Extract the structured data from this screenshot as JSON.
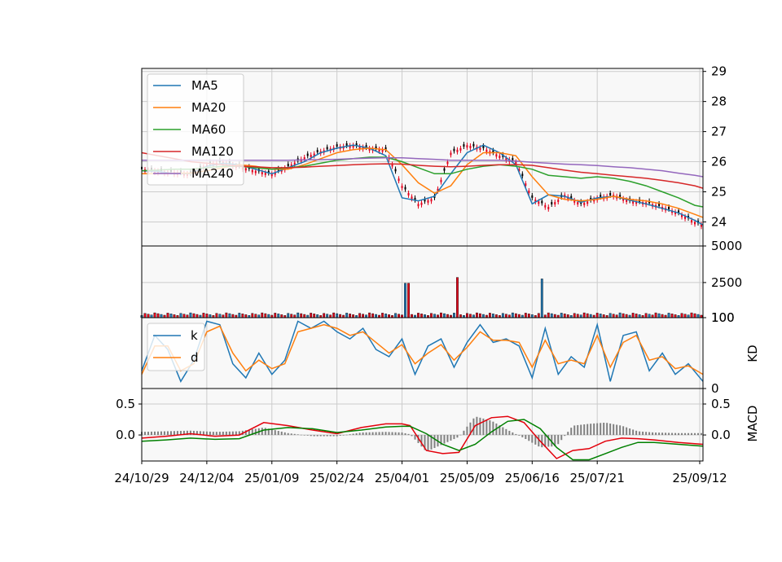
{
  "chart_data": [
    {
      "type": "line",
      "panel": "price",
      "description_of_marks": "candlesticks (red = up, black = down) with moving average lines",
      "x_tick_labels": [
        "24/10/29",
        "24/12/04",
        "25/01/09",
        "25/02/24",
        "25/04/01",
        "25/05/09",
        "25/06/16",
        "25/07/21",
        "25/09/12"
      ],
      "y_axis_side": "right",
      "ylim": [
        23.2,
        29.1
      ],
      "yticks": [
        24,
        25,
        26,
        27,
        28,
        29
      ],
      "grid": true,
      "legend_position": "top-left",
      "x": [
        0,
        10,
        20,
        30,
        40,
        50,
        60,
        70,
        80,
        90,
        100,
        110,
        120,
        130,
        140,
        150,
        160,
        170,
        180,
        190,
        200,
        210,
        220
      ],
      "close": [
        25.75,
        25.7,
        25.65,
        25.6,
        25.9,
        26.0,
        25.85,
        25.7,
        25.6,
        25.85,
        26.15,
        26.35,
        26.5,
        26.55,
        26.45,
        26.4,
        25.2,
        24.6,
        24.8,
        26.3,
        26.55,
        26.45,
        26.2
      ],
      "series": [
        {
          "name": "MA5",
          "color": "#1f77b4",
          "values": [
            25.7,
            25.68,
            25.6,
            25.6,
            25.85,
            25.95,
            25.9,
            25.75,
            25.6,
            25.8,
            26.0,
            26.3,
            26.45,
            26.55,
            26.45,
            26.2,
            24.8,
            24.7,
            24.85,
            25.6,
            26.3,
            26.55,
            26.3
          ]
        },
        {
          "name": "MA20",
          "color": "#ff7f0e",
          "values": [
            25.6,
            25.6,
            25.62,
            25.62,
            25.7,
            25.8,
            25.9,
            25.85,
            25.75,
            25.75,
            25.9,
            26.1,
            26.3,
            26.4,
            26.45,
            26.4,
            25.9,
            25.3,
            24.95,
            25.2,
            25.9,
            26.3,
            26.3
          ]
        },
        {
          "name": "MA60",
          "color": "#2ca02c",
          "values": [
            25.7,
            25.72,
            25.75,
            25.75,
            25.8,
            25.85,
            25.85,
            25.8,
            25.75,
            25.8,
            25.85,
            25.95,
            26.05,
            26.1,
            26.15,
            26.15,
            26.0,
            25.8,
            25.6,
            25.6,
            25.75,
            25.85,
            25.9
          ]
        },
        {
          "name": "MA120",
          "color": "#d62728",
          "values": [
            26.3,
            26.2,
            26.1,
            26.0,
            25.95,
            25.9,
            25.85,
            25.83,
            25.8,
            25.8,
            25.82,
            25.85,
            25.87,
            25.9,
            25.92,
            25.93,
            25.92,
            25.88,
            25.85,
            25.83,
            25.85,
            25.88,
            25.9
          ]
        },
        {
          "name": "MA240",
          "color": "#9467bd",
          "values": [
            26.05,
            26.05,
            26.05,
            26.05,
            26.05,
            26.05,
            26.05,
            26.05,
            26.05,
            26.05,
            26.06,
            26.07,
            26.08,
            26.1,
            26.12,
            26.13,
            26.13,
            26.1,
            26.08,
            26.05,
            26.05,
            26.05,
            26.05
          ]
        }
      ],
      "series_late": {
        "x": [
          230,
          240,
          250,
          260,
          270,
          280,
          290,
          300,
          310,
          320,
          330,
          340,
          345
        ],
        "close": [
          26.0,
          24.8,
          24.5,
          24.9,
          24.6,
          24.8,
          24.9,
          24.7,
          24.65,
          24.5,
          24.3,
          24.0,
          23.9
        ],
        "MA5": [
          25.9,
          24.6,
          24.9,
          24.85,
          24.65,
          24.8,
          24.85,
          24.72,
          24.6,
          24.45,
          24.3,
          24.05,
          23.9
        ],
        "MA20": [
          26.2,
          25.5,
          24.9,
          24.75,
          24.7,
          24.75,
          24.85,
          24.75,
          24.7,
          24.6,
          24.45,
          24.25,
          24.15
        ],
        "MA60": [
          25.85,
          25.75,
          25.55,
          25.5,
          25.45,
          25.5,
          25.45,
          25.35,
          25.2,
          25.0,
          24.8,
          24.55,
          24.5
        ],
        "MA120": [
          25.9,
          25.88,
          25.8,
          25.72,
          25.65,
          25.6,
          25.55,
          25.5,
          25.45,
          25.38,
          25.3,
          25.2,
          25.12
        ],
        "MA240": [
          26.02,
          25.98,
          25.95,
          25.92,
          25.9,
          25.87,
          25.83,
          25.8,
          25.75,
          25.7,
          25.62,
          25.55,
          25.5
        ]
      }
    },
    {
      "type": "bar",
      "panel": "volume",
      "y_axis_side": "right",
      "ylim": [
        100,
        5000
      ],
      "yticks": [
        100,
        2500,
        5000
      ],
      "grid": true,
      "spikes": [
        {
          "x": 163,
          "value": 2450
        },
        {
          "x": 194,
          "value": 2850
        },
        {
          "x": 246,
          "value": 2750
        }
      ],
      "baseline_value": 250
    },
    {
      "type": "line",
      "panel": "KD",
      "ylabel": "KD",
      "y_axis_side": "right",
      "ylim": [
        0,
        100
      ],
      "yticks": [
        0,
        100
      ],
      "grid": true,
      "legend_position": "top-left",
      "x": [
        0,
        8,
        16,
        24,
        32,
        40,
        48,
        56,
        64,
        72,
        80,
        88,
        96,
        104,
        112,
        120,
        128,
        136,
        144,
        152,
        160,
        168,
        176,
        184,
        192,
        200,
        208,
        216,
        224,
        232,
        240,
        248,
        256,
        264,
        272,
        280,
        288,
        296,
        304,
        312,
        320,
        328,
        336,
        345
      ],
      "series": [
        {
          "name": "k",
          "color": "#1f77b4",
          "values": [
            25,
            75,
            55,
            10,
            40,
            95,
            90,
            35,
            15,
            50,
            20,
            40,
            95,
            85,
            95,
            80,
            70,
            85,
            55,
            45,
            70,
            20,
            60,
            70,
            30,
            65,
            90,
            65,
            70,
            60,
            15,
            85,
            20,
            45,
            30,
            90,
            10,
            75,
            80,
            25,
            50,
            20,
            35,
            10
          ]
        },
        {
          "name": "d",
          "color": "#ff7f0e",
          "values": [
            20,
            60,
            60,
            25,
            35,
            80,
            88,
            50,
            25,
            40,
            28,
            35,
            80,
            85,
            90,
            85,
            75,
            80,
            65,
            50,
            62,
            35,
            50,
            62,
            40,
            58,
            80,
            68,
            68,
            65,
            30,
            68,
            35,
            40,
            35,
            75,
            30,
            65,
            75,
            40,
            45,
            28,
            32,
            20
          ]
        }
      ]
    },
    {
      "type": "line",
      "panel": "MACD",
      "ylabel": "MACD",
      "y_axis_side": "right",
      "ylim": [
        -0.42,
        0.75
      ],
      "yticks": [
        -0.0,
        0.5
      ],
      "yticklabels_left": [
        "0.0",
        "0.5"
      ],
      "yticklabels_right": [
        "0.0",
        "0.5"
      ],
      "grid": true,
      "x": [
        0,
        15,
        30,
        45,
        60,
        75,
        90,
        105,
        120,
        135,
        150,
        160,
        165,
        175,
        185,
        195,
        205,
        215,
        225,
        235,
        245,
        255,
        265,
        275,
        285,
        295,
        305,
        315,
        330,
        345
      ],
      "series": [
        {
          "name": "",
          "color": "#e3000b",
          "values": [
            -0.05,
            -0.02,
            0.02,
            -0.02,
            0.0,
            0.2,
            0.15,
            0.08,
            0.02,
            0.12,
            0.18,
            0.18,
            0.15,
            -0.25,
            -0.3,
            -0.28,
            0.15,
            0.28,
            0.3,
            0.2,
            -0.1,
            -0.38,
            -0.25,
            -0.22,
            -0.1,
            -0.05,
            -0.06,
            -0.08,
            -0.12,
            -0.15
          ]
        },
        {
          "name": "",
          "color": "#008000",
          "values": [
            -0.1,
            -0.08,
            -0.05,
            -0.07,
            -0.06,
            0.08,
            0.12,
            0.1,
            0.04,
            0.08,
            0.13,
            0.14,
            0.14,
            0.02,
            -0.15,
            -0.25,
            -0.15,
            0.05,
            0.22,
            0.25,
            0.1,
            -0.2,
            -0.4,
            -0.4,
            -0.3,
            -0.2,
            -0.12,
            -0.12,
            -0.15,
            -0.18
          ]
        }
      ],
      "histogram_color": "#808080"
    }
  ]
}
